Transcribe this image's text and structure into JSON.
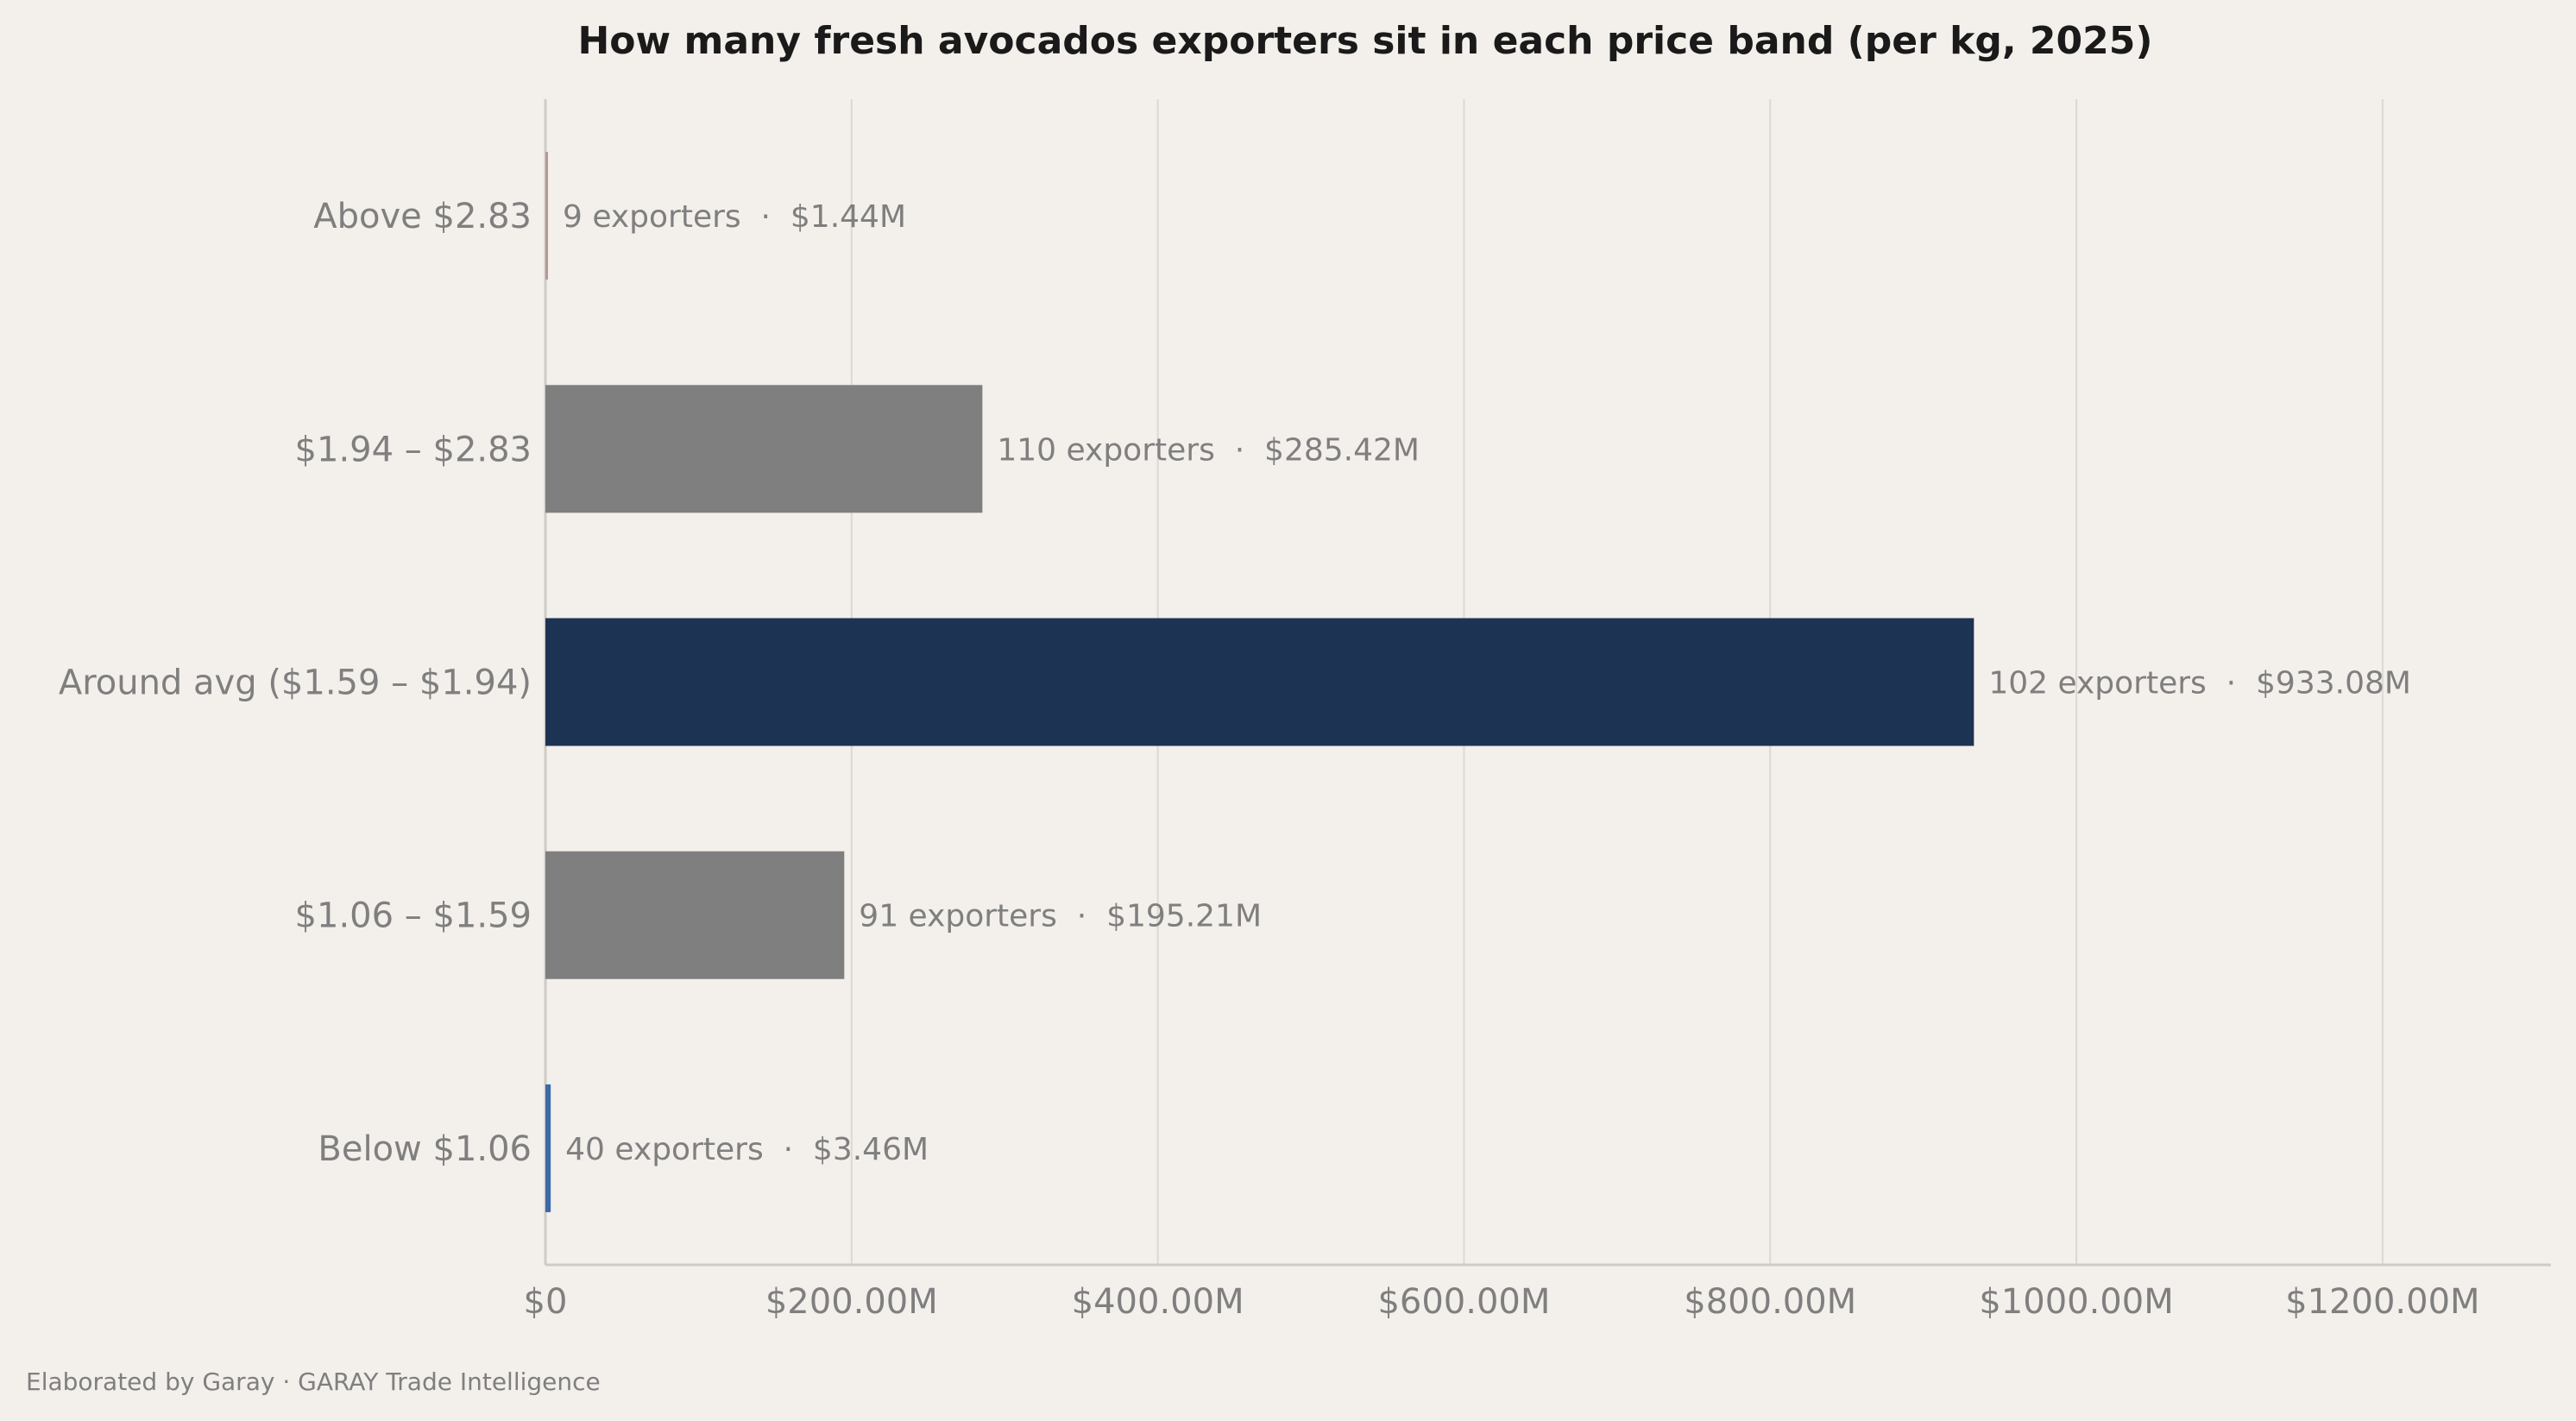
{
  "chart_data": {
    "type": "bar",
    "orientation": "horizontal",
    "title": "How many fresh avocados exporters sit in each price band (per kg, 2025)",
    "xlabel": "",
    "ylabel": "",
    "categories": [
      "Above $2.83",
      "$1.94 – $2.83",
      "Around avg ($1.59 – $1.94)",
      "$1.06 – $1.59",
      "Below $1.06"
    ],
    "values": [
      1.44,
      285.42,
      933.08,
      195.21,
      3.46
    ],
    "value_unit": "$M",
    "exporters": [
      9,
      110,
      102,
      91,
      40
    ],
    "data_labels": [
      "9 exporters  ·  $1.44M",
      "110 exporters  ·  $285.42M",
      "102 exporters  ·  $933.08M",
      "91 exporters  ·  $195.21M",
      "40 exporters  ·  $3.46M"
    ],
    "bar_colors": [
      "#b59a92",
      "#7f7f7f",
      "#1d3354",
      "#7f7f7f",
      "#3b6aa8"
    ],
    "xlim": [
      0,
      1310
    ],
    "xticks": [
      0,
      200,
      400,
      600,
      800,
      1000,
      1200
    ],
    "xtick_labels": [
      "$0",
      "$200.00M",
      "$400.00M",
      "$600.00M",
      "$800.00M",
      "$1000.00M",
      "$1200.00M"
    ],
    "grid": "vertical",
    "legend": "none"
  },
  "footer": "Elaborated by Garay  ·  GARAY Trade Intelligence"
}
